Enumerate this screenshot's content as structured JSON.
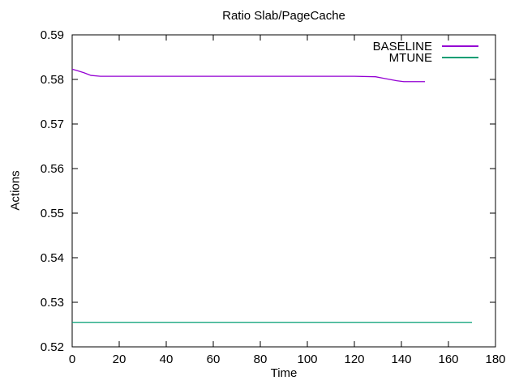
{
  "window": {
    "background": "#ffffff",
    "text_color": "#000000"
  },
  "chart_data": {
    "type": "line",
    "title": "Ratio Slab/PageCache",
    "xlabel": "Time",
    "ylabel": "Actions",
    "xlim": [
      0,
      180
    ],
    "ylim": [
      0.52,
      0.59
    ],
    "xticks": [
      0,
      20,
      40,
      60,
      80,
      100,
      120,
      140,
      160,
      180
    ],
    "yticks": [
      0.52,
      0.53,
      0.54,
      0.55,
      0.56,
      0.57,
      0.58,
      0.59
    ],
    "grid": false,
    "legend_position": "top-right-inside",
    "axis_color": "#000000",
    "series": [
      {
        "name": "BASELINE",
        "color": "#9400d3",
        "points": [
          [
            0,
            0.5823
          ],
          [
            2,
            0.582
          ],
          [
            5,
            0.5815
          ],
          [
            8,
            0.5809
          ],
          [
            12,
            0.5807
          ],
          [
            30,
            0.5807
          ],
          [
            60,
            0.5807
          ],
          [
            90,
            0.5807
          ],
          [
            120,
            0.5807
          ],
          [
            129,
            0.5806
          ],
          [
            132,
            0.5803
          ],
          [
            135,
            0.58
          ],
          [
            138,
            0.5797
          ],
          [
            141,
            0.5795
          ],
          [
            145,
            0.5795
          ],
          [
            150,
            0.5795
          ]
        ]
      },
      {
        "name": "MTUNE",
        "color": "#009e73",
        "points": [
          [
            0,
            0.5255
          ],
          [
            170,
            0.5255
          ]
        ]
      }
    ]
  }
}
